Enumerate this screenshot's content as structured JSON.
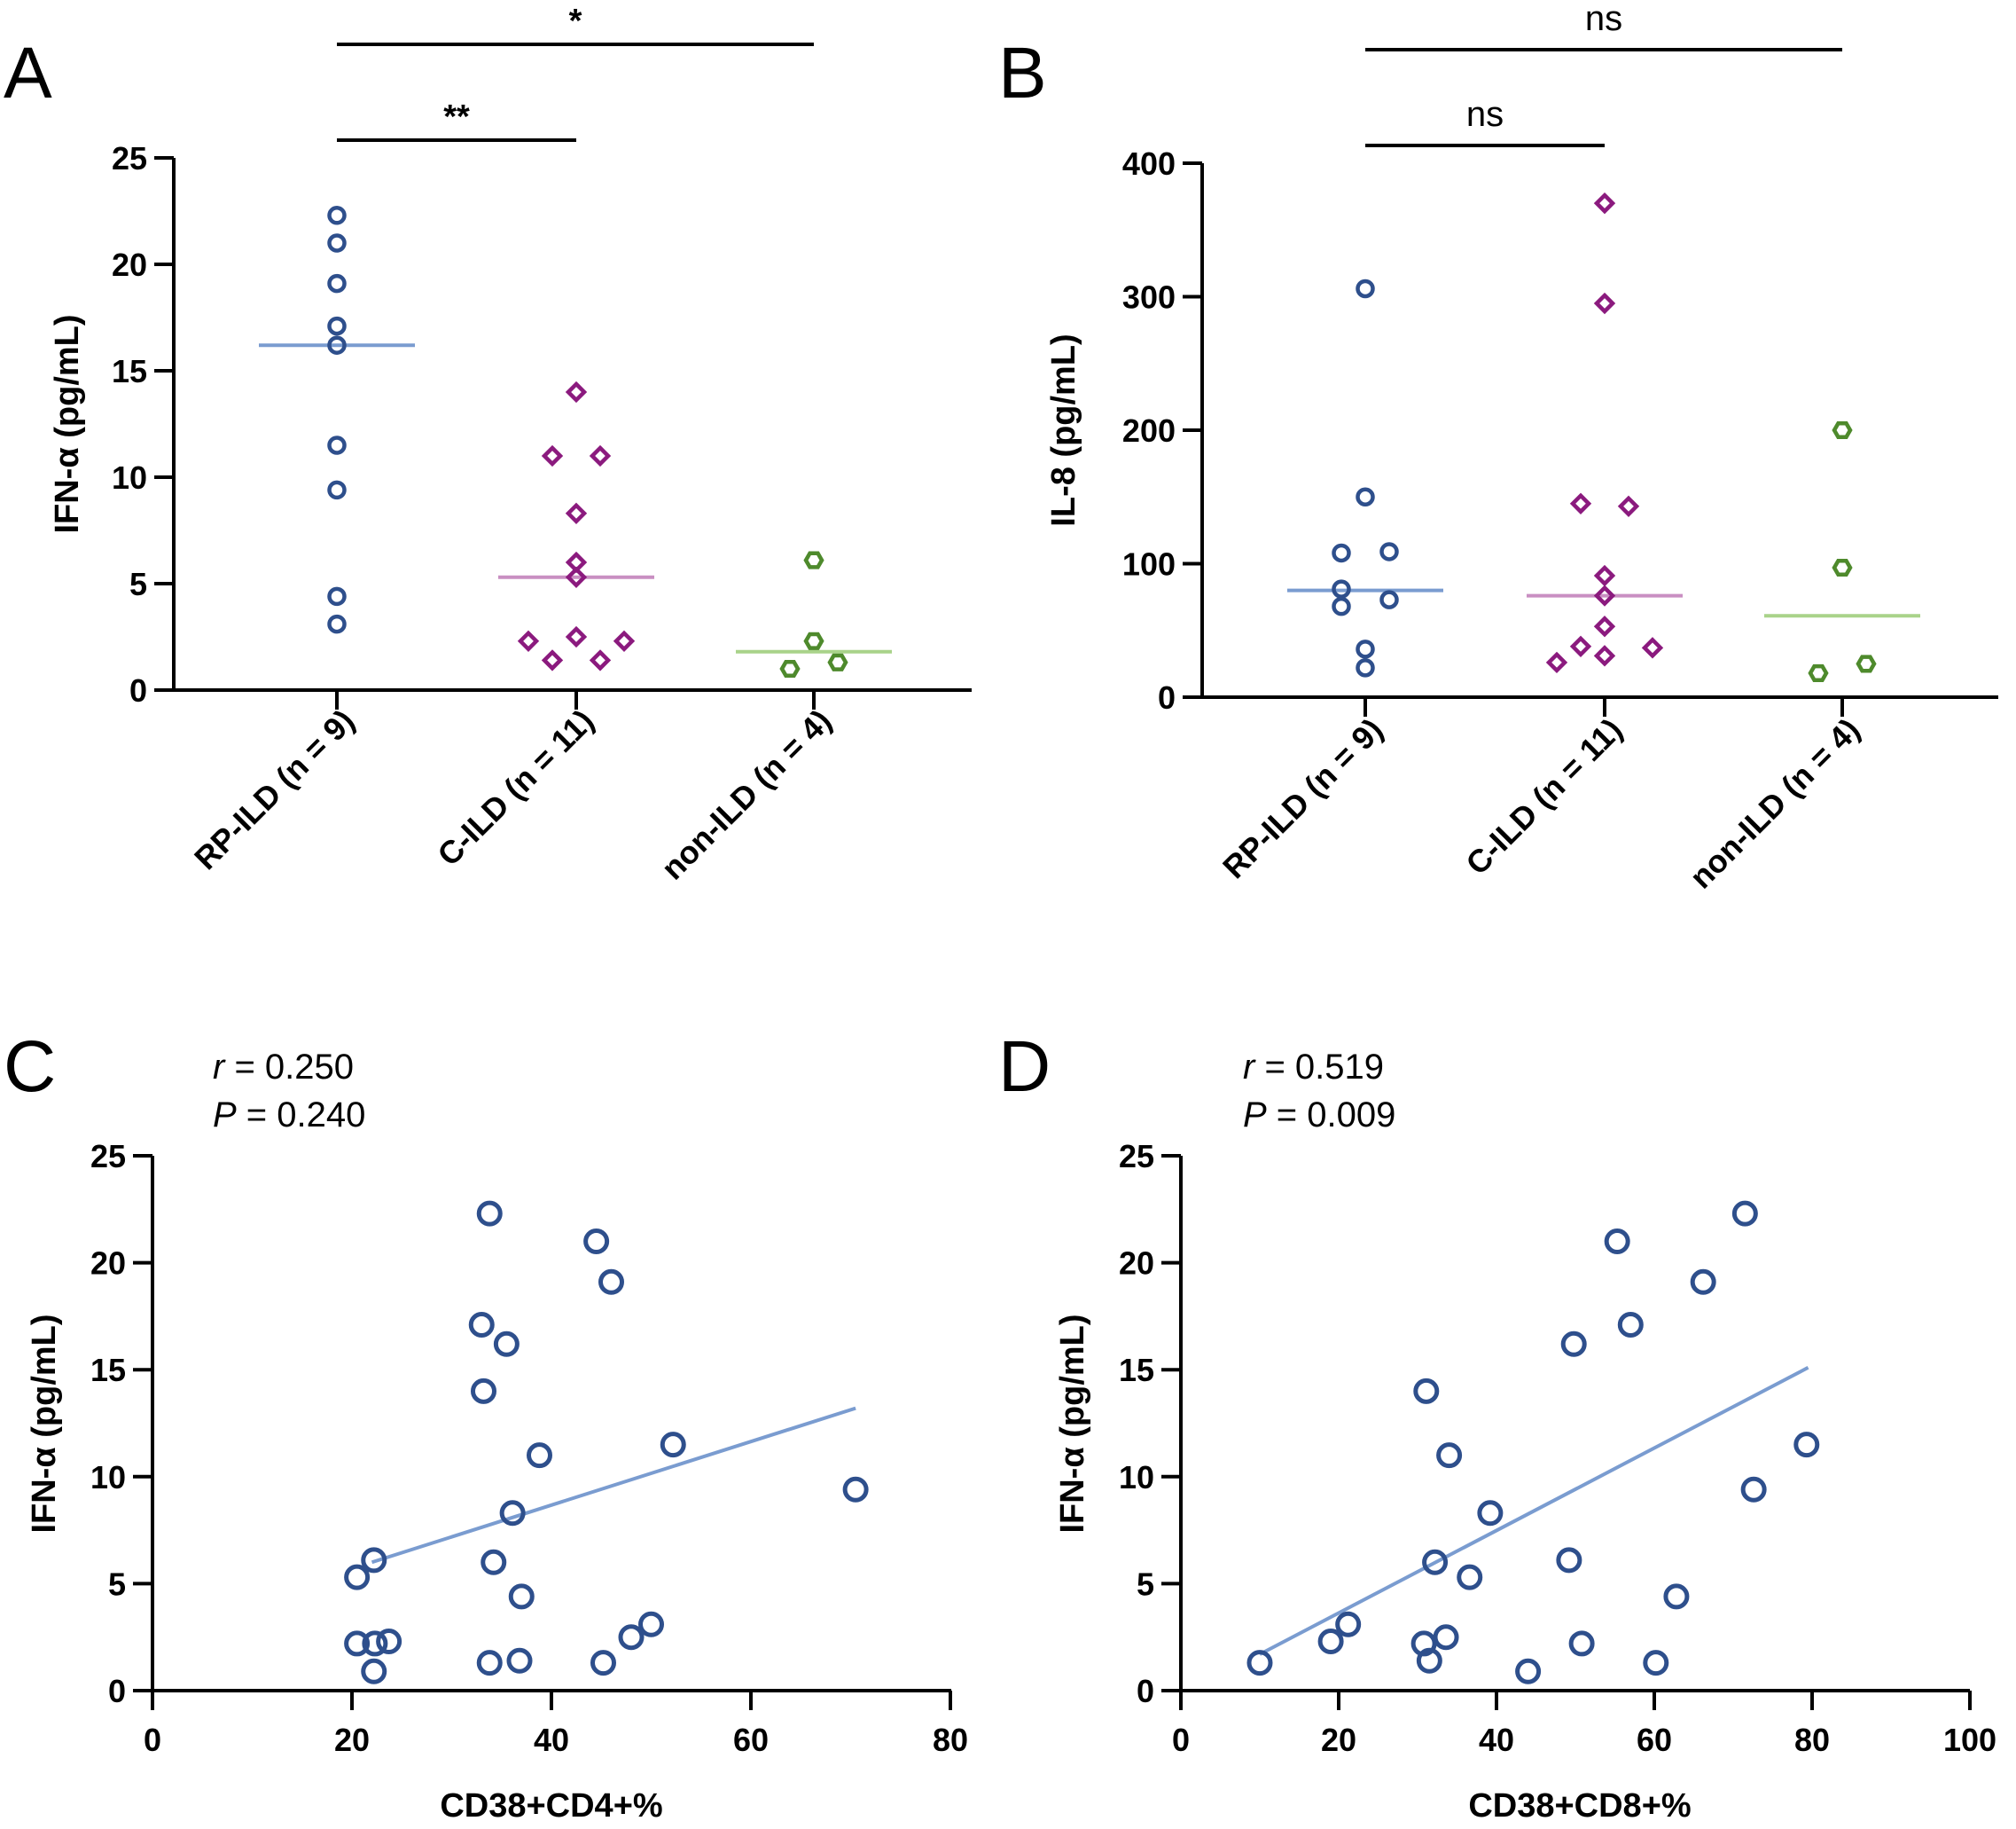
{
  "chart_data": [
    {
      "panel": "A",
      "type": "scatter",
      "subtype": "dot-plot",
      "ylabel": "IFN-α (pg/mL)",
      "ylim": [
        0,
        25
      ],
      "yticks": [
        0,
        5,
        10,
        15,
        20,
        25
      ],
      "categories": [
        "RP-ILD (n = 9)",
        "C-ILD (n = 11)",
        "non-ILD (n = 4)"
      ],
      "series": [
        {
          "name": "RP-ILD (n = 9)",
          "marker": "circle",
          "color": "#2E4F8C",
          "median_color": "#7A9CD0",
          "median": 16.2,
          "points": [
            {
              "v": 22.3,
              "j": 0
            },
            {
              "v": 21.0,
              "j": 0
            },
            {
              "v": 19.1,
              "j": 0
            },
            {
              "v": 17.1,
              "j": 0
            },
            {
              "v": 16.2,
              "j": 0
            },
            {
              "v": 11.5,
              "j": 0
            },
            {
              "v": 9.4,
              "j": 0
            },
            {
              "v": 4.4,
              "j": 0
            },
            {
              "v": 3.1,
              "j": 0
            }
          ]
        },
        {
          "name": "C-ILD (n = 11)",
          "marker": "diamond",
          "color": "#8B1A7E",
          "median_color": "#C98FC2",
          "median": 5.3,
          "points": [
            {
              "v": 14.0,
              "j": 0
            },
            {
              "v": 11.0,
              "j": -1
            },
            {
              "v": 11.0,
              "j": 1
            },
            {
              "v": 8.3,
              "j": 0
            },
            {
              "v": 6.0,
              "j": 0
            },
            {
              "v": 5.3,
              "j": 0
            },
            {
              "v": 2.5,
              "j": 0
            },
            {
              "v": 2.3,
              "j": -2
            },
            {
              "v": 2.3,
              "j": 2
            },
            {
              "v": 1.4,
              "j": -1
            },
            {
              "v": 1.4,
              "j": 1
            }
          ]
        },
        {
          "name": "non-ILD (n = 4)",
          "marker": "hexagon",
          "color": "#4E8A2C",
          "median_color": "#A9D38A",
          "median": 1.8,
          "points": [
            {
              "v": 6.1,
              "j": 0
            },
            {
              "v": 2.3,
              "j": 0
            },
            {
              "v": 1.3,
              "j": 1
            },
            {
              "v": 1.0,
              "j": -1
            }
          ]
        }
      ],
      "significance": [
        {
          "from": 0,
          "to": 1,
          "label": "**"
        },
        {
          "from": 0,
          "to": 2,
          "label": "*"
        }
      ]
    },
    {
      "panel": "B",
      "type": "scatter",
      "subtype": "dot-plot",
      "ylabel": "IL-8 (pg/mL)",
      "ylim": [
        0,
        400
      ],
      "yticks": [
        0,
        100,
        200,
        300,
        400
      ],
      "categories": [
        "RP-ILD (n = 9)",
        "C-ILD (n = 11)",
        "non-ILD (n = 4)"
      ],
      "series": [
        {
          "name": "RP-ILD (n = 9)",
          "marker": "circle",
          "color": "#2E4F8C",
          "median_color": "#7A9CD0",
          "median": 80,
          "points": [
            {
              "v": 306,
              "j": 0
            },
            {
              "v": 150,
              "j": 0
            },
            {
              "v": 108,
              "j": -1
            },
            {
              "v": 109,
              "j": 1
            },
            {
              "v": 81,
              "j": -1
            },
            {
              "v": 73,
              "j": 1
            },
            {
              "v": 68,
              "j": -1
            },
            {
              "v": 36,
              "j": 0
            },
            {
              "v": 22,
              "j": 0
            }
          ]
        },
        {
          "name": "C-ILD (n = 11)",
          "marker": "diamond",
          "color": "#8B1A7E",
          "median_color": "#C98FC2",
          "median": 76,
          "points": [
            {
              "v": 370,
              "j": 0
            },
            {
              "v": 295,
              "j": 0
            },
            {
              "v": 145,
              "j": -1
            },
            {
              "v": 143,
              "j": 1
            },
            {
              "v": 91,
              "j": 0
            },
            {
              "v": 76,
              "j": 0
            },
            {
              "v": 53,
              "j": 0
            },
            {
              "v": 38,
              "j": -1
            },
            {
              "v": 37,
              "j": 2
            },
            {
              "v": 31,
              "j": 0
            },
            {
              "v": 26,
              "j": -2
            }
          ]
        },
        {
          "name": "non-ILD (n = 4)",
          "marker": "hexagon",
          "color": "#4E8A2C",
          "median_color": "#A9D38A",
          "median": 61,
          "points": [
            {
              "v": 200,
              "j": 0
            },
            {
              "v": 97,
              "j": 0
            },
            {
              "v": 25,
              "j": 1
            },
            {
              "v": 18,
              "j": -1
            }
          ]
        }
      ],
      "significance": [
        {
          "from": 0,
          "to": 1,
          "label": "ns"
        },
        {
          "from": 0,
          "to": 2,
          "label": "ns"
        }
      ]
    },
    {
      "panel": "C",
      "type": "scatter",
      "xlabel": "CD38+CD4+%",
      "ylabel": "IFN-α (pg/mL)",
      "xlim": [
        0,
        80
      ],
      "xticks": [
        0,
        20,
        40,
        60,
        80
      ],
      "ylim": [
        0,
        25
      ],
      "yticks": [
        0,
        5,
        10,
        15,
        20,
        25
      ],
      "r_label": "r",
      "r_text": " = 0.250",
      "p_label": "P",
      "p_text": " = 0.240",
      "point_color": "#2E4F8C",
      "line_color": "#7A9CD0",
      "regression": {
        "x": [
          22,
          70.5
        ],
        "y": [
          6.0,
          13.2
        ]
      },
      "points": [
        {
          "x": 33.8,
          "y": 22.3
        },
        {
          "x": 44.5,
          "y": 21.0
        },
        {
          "x": 46.0,
          "y": 19.1
        },
        {
          "x": 33.0,
          "y": 17.1
        },
        {
          "x": 35.5,
          "y": 16.2
        },
        {
          "x": 33.2,
          "y": 14.0
        },
        {
          "x": 52.2,
          "y": 11.5
        },
        {
          "x": 38.8,
          "y": 11.0
        },
        {
          "x": 70.5,
          "y": 9.4
        },
        {
          "x": 36.1,
          "y": 8.3
        },
        {
          "x": 22.2,
          "y": 6.1
        },
        {
          "x": 34.2,
          "y": 6.0
        },
        {
          "x": 20.5,
          "y": 5.3
        },
        {
          "x": 37.0,
          "y": 4.4
        },
        {
          "x": 50.0,
          "y": 3.1
        },
        {
          "x": 48.0,
          "y": 2.5
        },
        {
          "x": 23.7,
          "y": 2.3
        },
        {
          "x": 20.5,
          "y": 2.2
        },
        {
          "x": 22.3,
          "y": 2.2
        },
        {
          "x": 36.8,
          "y": 1.4
        },
        {
          "x": 45.2,
          "y": 1.3
        },
        {
          "x": 33.8,
          "y": 1.3
        },
        {
          "x": 22.2,
          "y": 0.9
        }
      ]
    },
    {
      "panel": "D",
      "type": "scatter",
      "xlabel": "CD38+CD8+%",
      "ylabel": "IFN-α (pg/mL)",
      "xlim": [
        0,
        100
      ],
      "xticks": [
        0,
        20,
        40,
        60,
        80,
        100
      ],
      "ylim": [
        0,
        25
      ],
      "yticks": [
        0,
        5,
        10,
        15,
        20,
        25
      ],
      "r_label": "r",
      "r_text": " = 0.519",
      "p_label": "P",
      "p_text": " = 0.009",
      "point_color": "#2E4F8C",
      "line_color": "#7A9CD0",
      "regression": {
        "x": [
          10,
          79.5
        ],
        "y": [
          1.7,
          15.1
        ]
      },
      "points": [
        {
          "x": 71.5,
          "y": 22.3
        },
        {
          "x": 55.3,
          "y": 21.0
        },
        {
          "x": 66.2,
          "y": 19.1
        },
        {
          "x": 57.0,
          "y": 17.1
        },
        {
          "x": 49.8,
          "y": 16.2
        },
        {
          "x": 31.1,
          "y": 14.0
        },
        {
          "x": 79.3,
          "y": 11.5
        },
        {
          "x": 34.0,
          "y": 11.0
        },
        {
          "x": 72.6,
          "y": 9.4
        },
        {
          "x": 39.2,
          "y": 8.3
        },
        {
          "x": 49.2,
          "y": 6.1
        },
        {
          "x": 32.2,
          "y": 6.0
        },
        {
          "x": 36.6,
          "y": 5.3
        },
        {
          "x": 62.8,
          "y": 4.4
        },
        {
          "x": 21.2,
          "y": 3.1
        },
        {
          "x": 33.6,
          "y": 2.5
        },
        {
          "x": 19.0,
          "y": 2.3
        },
        {
          "x": 50.8,
          "y": 2.2
        },
        {
          "x": 30.8,
          "y": 2.2
        },
        {
          "x": 31.5,
          "y": 1.4
        },
        {
          "x": 10.0,
          "y": 1.3
        },
        {
          "x": 60.2,
          "y": 1.3
        },
        {
          "x": 44.0,
          "y": 0.9
        }
      ]
    }
  ]
}
